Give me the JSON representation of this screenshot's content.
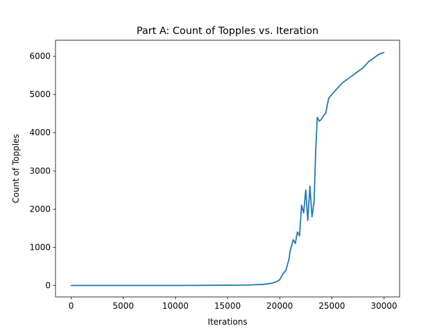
{
  "chart_data": {
    "type": "line",
    "title": "Part A: Count of Topples vs. Iteration",
    "xlabel": "Iterations",
    "ylabel": "Count of Topples",
    "xlim": [
      -1500,
      31500
    ],
    "ylim": [
      -300,
      6420
    ],
    "xticks": [
      0,
      5000,
      10000,
      15000,
      20000,
      25000,
      30000
    ],
    "yticks": [
      0,
      1000,
      2000,
      3000,
      4000,
      5000,
      6000
    ],
    "xtick_labels": [
      "0",
      "5000",
      "10000",
      "15000",
      "20000",
      "25000",
      "30000"
    ],
    "ytick_labels": [
      "0",
      "1000",
      "2000",
      "3000",
      "4000",
      "5000",
      "6000"
    ],
    "grid": false,
    "series": [
      {
        "color": "#1f77b4",
        "x": [
          0,
          5000,
          10000,
          14000,
          17000,
          18500,
          19300,
          19700,
          20000,
          20300,
          20600,
          20900,
          21000,
          21300,
          21500,
          21700,
          21900,
          22100,
          22300,
          22500,
          22700,
          22900,
          23100,
          23300,
          23450,
          23600,
          23800,
          24000,
          24200,
          24400,
          24700,
          25000,
          25500,
          26000,
          26500,
          27000,
          27500,
          28000,
          28500,
          29000,
          29500,
          30000
        ],
        "y": [
          0,
          0,
          0,
          5,
          10,
          30,
          60,
          100,
          150,
          300,
          400,
          700,
          900,
          1200,
          1100,
          1400,
          1300,
          2100,
          1900,
          2500,
          1700,
          2600,
          1800,
          2200,
          3500,
          4400,
          4300,
          4350,
          4450,
          4500,
          4900,
          5000,
          5150,
          5300,
          5400,
          5500,
          5600,
          5700,
          5850,
          5950,
          6050,
          6100
        ]
      }
    ]
  }
}
